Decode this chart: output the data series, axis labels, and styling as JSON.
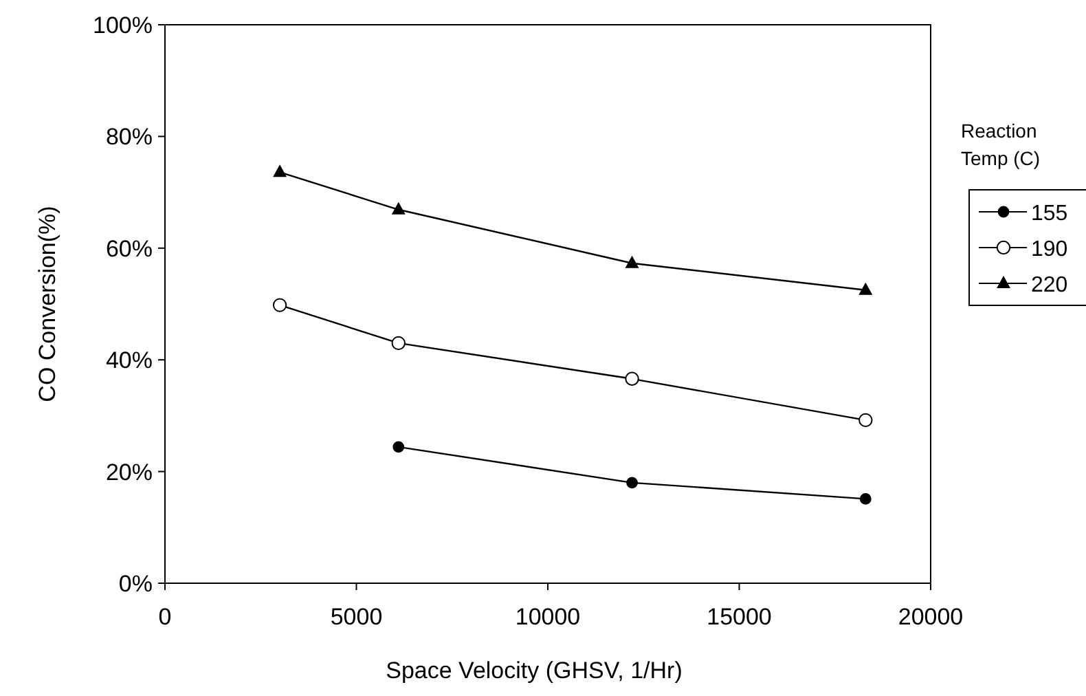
{
  "chart_data": {
    "type": "line",
    "xlabel": "Space Velocity (GHSV, 1/Hr)",
    "ylabel": "CO Conversion(%)",
    "legend_title": "Reaction Temp (C)",
    "legend": "right",
    "grid": false,
    "xlim": [
      0,
      20000
    ],
    "xticks": [
      0,
      5000,
      10000,
      15000,
      20000
    ],
    "ylim": [
      0,
      100
    ],
    "yticks": [
      {
        "value": 0,
        "label": "0%"
      },
      {
        "value": 20,
        "label": "20%"
      },
      {
        "value": 40,
        "label": "40%"
      },
      {
        "value": 60,
        "label": "60%"
      },
      {
        "value": 80,
        "label": "80%"
      },
      {
        "value": 100,
        "label": "100%"
      }
    ],
    "line_style": "solid",
    "series": [
      {
        "name": "155",
        "color": "#000000",
        "marker": "circle",
        "x": [
          6100,
          12200,
          18300
        ],
        "values": [
          24.4,
          18.0,
          15.1
        ]
      },
      {
        "name": "190",
        "color": "#000000",
        "marker": "circle-open",
        "x": [
          3000,
          6100,
          12200,
          18300
        ],
        "values": [
          49.8,
          43.0,
          36.6,
          29.2
        ]
      },
      {
        "name": "220",
        "color": "#000000",
        "marker": "triangle",
        "x": [
          3000,
          6100,
          12200,
          18300
        ],
        "values": [
          73.6,
          66.9,
          57.3,
          52.5
        ]
      }
    ]
  }
}
